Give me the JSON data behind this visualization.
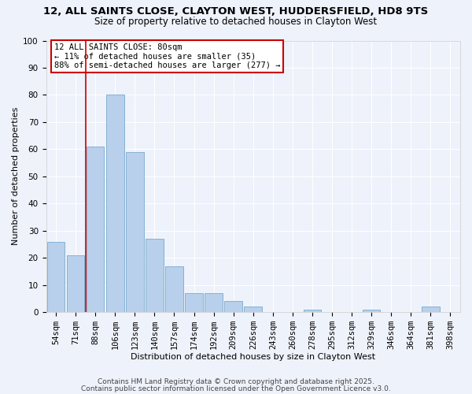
{
  "title": "12, ALL SAINTS CLOSE, CLAYTON WEST, HUDDERSFIELD, HD8 9TS",
  "subtitle": "Size of property relative to detached houses in Clayton West",
  "xlabel": "Distribution of detached houses by size in Clayton West",
  "ylabel": "Number of detached properties",
  "bar_color": "#b8d0eb",
  "bar_edge_color": "#7aaace",
  "background_color": "#eef2fb",
  "grid_color": "#ffffff",
  "categories": [
    "54sqm",
    "71sqm",
    "88sqm",
    "106sqm",
    "123sqm",
    "140sqm",
    "157sqm",
    "174sqm",
    "192sqm",
    "209sqm",
    "226sqm",
    "243sqm",
    "260sqm",
    "278sqm",
    "295sqm",
    "312sqm",
    "329sqm",
    "346sqm",
    "364sqm",
    "381sqm",
    "398sqm"
  ],
  "values": [
    26,
    21,
    61,
    80,
    59,
    27,
    17,
    7,
    7,
    4,
    2,
    0,
    0,
    1,
    0,
    0,
    1,
    0,
    0,
    2,
    0
  ],
  "ylim": [
    0,
    100
  ],
  "yticks": [
    0,
    10,
    20,
    30,
    40,
    50,
    60,
    70,
    80,
    90,
    100
  ],
  "marker_color": "#cc0000",
  "annotation_title": "12 ALL SAINTS CLOSE: 80sqm",
  "annotation_line1": "← 11% of detached houses are smaller (35)",
  "annotation_line2": "88% of semi-detached houses are larger (277) →",
  "annotation_box_color": "#cc0000",
  "footer1": "Contains HM Land Registry data © Crown copyright and database right 2025.",
  "footer2": "Contains public sector information licensed under the Open Government Licence v3.0.",
  "title_fontsize": 9.5,
  "subtitle_fontsize": 8.5,
  "axis_label_fontsize": 8,
  "tick_fontsize": 7.5,
  "annotation_fontsize": 7.5,
  "footer_fontsize": 6.5
}
